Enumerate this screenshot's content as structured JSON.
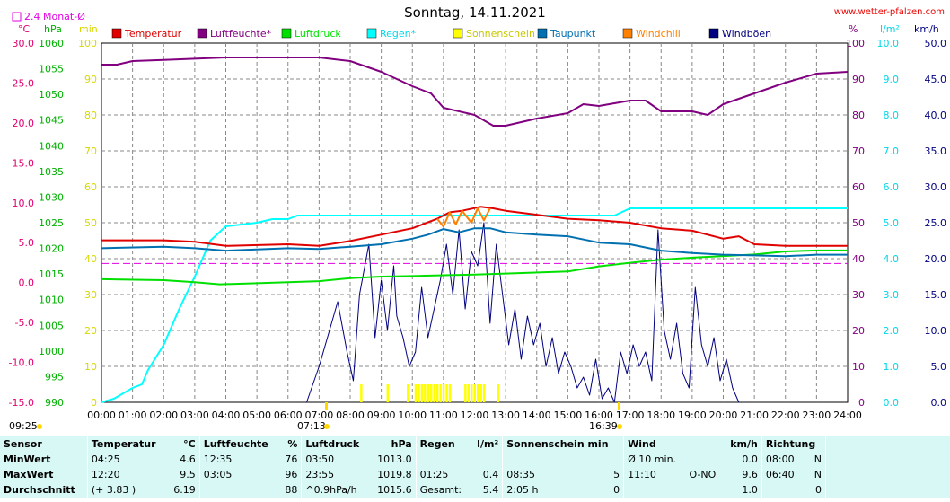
{
  "page": {
    "title": "Sonntag, 14.11.2021",
    "site": "www.wetter-pfalzen.com"
  },
  "chart_data": {
    "type": "line",
    "x_range": [
      "00:00",
      "24:00"
    ],
    "x_ticks": [
      "00:00",
      "01:00",
      "02:00",
      "03:00",
      "04:00",
      "05:00",
      "06:00",
      "07:00",
      "08:00",
      "09:00",
      "10:00",
      "11:00",
      "12:00",
      "13:00",
      "14:00",
      "15:00",
      "16:00",
      "17:00",
      "18:00",
      "19:00",
      "20:00",
      "21:00",
      "22:00",
      "23:00",
      "24:00"
    ],
    "axes": {
      "temp": {
        "unit": "°C",
        "label": "2.4 Monat-Ø",
        "min": -15,
        "max": 30,
        "ticks": [
          "30.0",
          "25.0",
          "20.0",
          "15.0",
          "10.0",
          "5.0",
          "0.0",
          "-5.0",
          "-10.0",
          "-15.0"
        ]
      },
      "pressure": {
        "unit": "hPa",
        "min": 990,
        "max": 1060,
        "ticks": [
          "1060",
          "1055",
          "1050",
          "1045",
          "1040",
          "1035",
          "1030",
          "1025",
          "1020",
          "1015",
          "1010",
          "1005",
          "1000",
          "995",
          "990"
        ]
      },
      "sunshine": {
        "unit": "min",
        "min": 0,
        "max": 100,
        "ticks": [
          "100",
          "90",
          "80",
          "70",
          "60",
          "50",
          "40",
          "30",
          "20",
          "10",
          "0"
        ]
      },
      "humidity": {
        "unit": "%",
        "min": 0,
        "max": 100,
        "ticks": [
          "100",
          "90",
          "80",
          "70",
          "60",
          "50",
          "40",
          "30",
          "20",
          "10",
          "0"
        ]
      },
      "rain": {
        "unit": "l/m²",
        "min": 0,
        "max": 10,
        "ticks": [
          "10.0",
          "9.0",
          "8.0",
          "7.0",
          "6.0",
          "5.0",
          "4.0",
          "3.0",
          "2.0",
          "1.0",
          "0.0"
        ]
      },
      "wind": {
        "unit": "km/h",
        "min": 0,
        "max": 50,
        "ticks": [
          "50.0",
          "45.0",
          "40.0",
          "35.0",
          "30.0",
          "25.0",
          "20.0",
          "15.0",
          "10.0",
          "5.0",
          "0.0"
        ]
      }
    },
    "legend": [
      {
        "name": "Temperatur",
        "color": "#e00000"
      },
      {
        "name": "Luftfeuchte*",
        "color": "#800080"
      },
      {
        "name": "Luftdruck",
        "color": "#00e000"
      },
      {
        "name": "Regen*",
        "color": "#00ffff"
      },
      {
        "name": "Sonnenschein",
        "color": "#ffff00"
      },
      {
        "name": "Taupunkt",
        "color": "#0070b0"
      },
      {
        "name": "Windchill",
        "color": "#ff8000"
      },
      {
        "name": "Windböen",
        "color": "#000080"
      }
    ],
    "monthly_avg_temp": 2.4,
    "series": [
      {
        "name": "Temperatur",
        "axis": "temp",
        "color": "#e00000",
        "points": [
          [
            0,
            5.3
          ],
          [
            2,
            5.3
          ],
          [
            3,
            5.1
          ],
          [
            4,
            4.6
          ],
          [
            6,
            4.8
          ],
          [
            7,
            4.6
          ],
          [
            8,
            5.2
          ],
          [
            9,
            6.0
          ],
          [
            10,
            6.8
          ],
          [
            10.8,
            8.0
          ],
          [
            11.2,
            8.8
          ],
          [
            11.6,
            9.0
          ],
          [
            12.2,
            9.5
          ],
          [
            12.6,
            9.3
          ],
          [
            13,
            9.0
          ],
          [
            14,
            8.5
          ],
          [
            15,
            8.0
          ],
          [
            16,
            7.8
          ],
          [
            17,
            7.5
          ],
          [
            18,
            6.8
          ],
          [
            19,
            6.5
          ],
          [
            20,
            5.5
          ],
          [
            20.5,
            5.8
          ],
          [
            21,
            4.8
          ],
          [
            22,
            4.6
          ],
          [
            23,
            4.6
          ],
          [
            24,
            4.6
          ]
        ]
      },
      {
        "name": "Taupunkt",
        "axis": "temp",
        "color": "#0070b0",
        "points": [
          [
            0,
            4.3
          ],
          [
            2,
            4.5
          ],
          [
            3,
            4.3
          ],
          [
            4,
            4.0
          ],
          [
            6,
            4.3
          ],
          [
            7,
            4.2
          ],
          [
            8,
            4.5
          ],
          [
            9,
            4.8
          ],
          [
            10,
            5.5
          ],
          [
            10.5,
            6.0
          ],
          [
            11,
            6.7
          ],
          [
            11.5,
            6.3
          ],
          [
            12,
            6.8
          ],
          [
            12.5,
            6.8
          ],
          [
            13,
            6.3
          ],
          [
            14,
            6.0
          ],
          [
            15,
            5.8
          ],
          [
            16,
            5.0
          ],
          [
            17,
            4.8
          ],
          [
            18,
            4.0
          ],
          [
            19,
            3.7
          ],
          [
            20,
            3.5
          ],
          [
            21,
            3.4
          ],
          [
            22,
            3.3
          ],
          [
            23,
            3.5
          ],
          [
            24,
            3.5
          ]
        ]
      },
      {
        "name": "Luftfeuchte*",
        "axis": "humidity",
        "color": "#800080",
        "points": [
          [
            0,
            94
          ],
          [
            0.5,
            94
          ],
          [
            1,
            95
          ],
          [
            2,
            95.3
          ],
          [
            4,
            96
          ],
          [
            6,
            96
          ],
          [
            7,
            96
          ],
          [
            8,
            95
          ],
          [
            9,
            92
          ],
          [
            10,
            88
          ],
          [
            10.6,
            86
          ],
          [
            11,
            82
          ],
          [
            12,
            80
          ],
          [
            12.6,
            77
          ],
          [
            13,
            77
          ],
          [
            14,
            79
          ],
          [
            15,
            80.5
          ],
          [
            15.5,
            83
          ],
          [
            16,
            82.5
          ],
          [
            17,
            84
          ],
          [
            17.5,
            84
          ],
          [
            18,
            81
          ],
          [
            19,
            81
          ],
          [
            19.5,
            80
          ],
          [
            20,
            83
          ],
          [
            21,
            86
          ],
          [
            22,
            89
          ],
          [
            23,
            91.5
          ],
          [
            24,
            92
          ]
        ]
      },
      {
        "name": "Luftdruck",
        "axis": "pressure",
        "color": "#00e000",
        "points": [
          [
            0,
            1014.0
          ],
          [
            2,
            1013.8
          ],
          [
            3,
            1013.4
          ],
          [
            3.8,
            1013.0
          ],
          [
            5,
            1013.2
          ],
          [
            7,
            1013.6
          ],
          [
            8,
            1014.2
          ],
          [
            9,
            1014.5
          ],
          [
            10,
            1014.6
          ],
          [
            12,
            1014.9
          ],
          [
            13,
            1015.1
          ],
          [
            15,
            1015.5
          ],
          [
            16,
            1016.5
          ],
          [
            17,
            1017.2
          ],
          [
            18,
            1017.8
          ],
          [
            19,
            1018.2
          ],
          [
            20,
            1018.5
          ],
          [
            21,
            1018.8
          ],
          [
            22,
            1019.4
          ],
          [
            23,
            1019.6
          ],
          [
            24,
            1019.6
          ]
        ]
      },
      {
        "name": "Regen*",
        "axis": "rain",
        "color": "#00ffff",
        "points": [
          [
            0,
            0
          ],
          [
            0.4,
            0.1
          ],
          [
            1,
            0.4
          ],
          [
            1.3,
            0.5
          ],
          [
            1.5,
            0.9
          ],
          [
            2,
            1.6
          ],
          [
            2.5,
            2.6
          ],
          [
            3,
            3.5
          ],
          [
            3.5,
            4.5
          ],
          [
            4,
            4.9
          ],
          [
            5,
            5.0
          ],
          [
            5.5,
            5.1
          ],
          [
            6,
            5.1
          ],
          [
            6.3,
            5.2
          ],
          [
            7,
            5.2
          ],
          [
            16,
            5.2
          ],
          [
            16.5,
            5.2
          ],
          [
            17,
            5.4
          ],
          [
            24,
            5.4
          ]
        ]
      },
      {
        "name": "Windchill",
        "axis": "temp",
        "color": "#ff8000",
        "points": [
          [
            10.8,
            8.0
          ],
          [
            11,
            7.0
          ],
          [
            11.2,
            8.8
          ],
          [
            11.4,
            7.3
          ],
          [
            11.6,
            9.0
          ],
          [
            11.9,
            7.5
          ],
          [
            12.1,
            9.3
          ],
          [
            12.3,
            7.8
          ],
          [
            12.5,
            9.3
          ]
        ]
      },
      {
        "name": "Windböen",
        "axis": "wind",
        "color": "#000080",
        "points": [
          [
            6.6,
            0
          ],
          [
            7.0,
            5.0
          ],
          [
            7.3,
            9.5
          ],
          [
            7.6,
            14.0
          ],
          [
            7.9,
            7.0
          ],
          [
            8.1,
            3.0
          ],
          [
            8.3,
            15.0
          ],
          [
            8.6,
            22.0
          ],
          [
            8.8,
            9.0
          ],
          [
            9.0,
            17.0
          ],
          [
            9.2,
            10.0
          ],
          [
            9.4,
            19.0
          ],
          [
            9.5,
            12.0
          ],
          [
            9.7,
            9.0
          ],
          [
            9.9,
            5.0
          ],
          [
            10.1,
            7.0
          ],
          [
            10.3,
            16.0
          ],
          [
            10.5,
            9.0
          ],
          [
            10.7,
            13.0
          ],
          [
            10.9,
            17.0
          ],
          [
            11.1,
            22.0
          ],
          [
            11.3,
            15.0
          ],
          [
            11.5,
            24.0
          ],
          [
            11.7,
            13.0
          ],
          [
            11.9,
            21.0
          ],
          [
            12.1,
            19.0
          ],
          [
            12.3,
            25.0
          ],
          [
            12.5,
            11.0
          ],
          [
            12.7,
            22.0
          ],
          [
            12.9,
            15.0
          ],
          [
            13.1,
            8.0
          ],
          [
            13.3,
            13.0
          ],
          [
            13.5,
            6.0
          ],
          [
            13.7,
            12.0
          ],
          [
            13.9,
            8.0
          ],
          [
            14.1,
            11.0
          ],
          [
            14.3,
            5.0
          ],
          [
            14.5,
            9.0
          ],
          [
            14.7,
            4.0
          ],
          [
            14.9,
            7.0
          ],
          [
            15.1,
            5.0
          ],
          [
            15.3,
            2.0
          ],
          [
            15.5,
            3.5
          ],
          [
            15.7,
            1.0
          ],
          [
            15.9,
            6.0
          ],
          [
            16.1,
            0.5
          ],
          [
            16.3,
            2.0
          ],
          [
            16.5,
            0
          ],
          [
            16.7,
            7.0
          ],
          [
            16.9,
            4.0
          ],
          [
            17.1,
            8.0
          ],
          [
            17.3,
            5.0
          ],
          [
            17.5,
            7.0
          ],
          [
            17.7,
            3.0
          ],
          [
            17.9,
            24.0
          ],
          [
            18.1,
            10.0
          ],
          [
            18.3,
            6.0
          ],
          [
            18.5,
            11.0
          ],
          [
            18.7,
            4.0
          ],
          [
            18.9,
            2.0
          ],
          [
            19.1,
            16.0
          ],
          [
            19.3,
            8.0
          ],
          [
            19.5,
            5.0
          ],
          [
            19.7,
            9.0
          ],
          [
            19.9,
            3.0
          ],
          [
            20.1,
            6.0
          ],
          [
            20.3,
            2.0
          ],
          [
            20.5,
            0
          ]
        ]
      }
    ],
    "sunshine_minutes": [
      [
        8.35,
        5
      ],
      [
        9.2,
        5
      ],
      [
        9.85,
        5
      ],
      [
        10.1,
        5
      ],
      [
        10.2,
        5
      ],
      [
        10.3,
        5
      ],
      [
        10.4,
        5
      ],
      [
        10.5,
        5
      ],
      [
        10.6,
        5
      ],
      [
        10.7,
        5
      ],
      [
        10.8,
        5
      ],
      [
        10.9,
        5
      ],
      [
        11.0,
        5
      ],
      [
        11.1,
        5
      ],
      [
        11.2,
        5
      ],
      [
        11.7,
        5
      ],
      [
        11.8,
        5
      ],
      [
        11.9,
        5
      ],
      [
        12.0,
        5
      ],
      [
        12.1,
        5
      ],
      [
        12.2,
        5
      ],
      [
        12.3,
        5
      ],
      [
        12.75,
        5
      ]
    ],
    "annotations": [
      "09:25",
      "07:13",
      "16:39"
    ],
    "avg_line_label": "2.4 Monat-Ø"
  },
  "stats": {
    "headers": [
      "Sensor",
      "Temperatur",
      "°C",
      "Luftfeuchte",
      "%",
      "Luftdruck",
      "hPa",
      "Regen",
      "l/m²",
      "Sonnenschein min",
      "Wind",
      "km/h",
      "Richtung"
    ],
    "rows": [
      {
        "label": "MinWert",
        "t_time": "04:25",
        "t_val": "4.6",
        "h_time": "12:35",
        "h_val": "76",
        "p_time": "03:50",
        "p_val": "1013.0",
        "r_time": "",
        "r_val": "",
        "s_time": "",
        "s_val": "",
        "w_time": "Ø 10 min.",
        "w_dir": "",
        "w_val": "0.0",
        "d_time": "08:00",
        "d_val": "N"
      },
      {
        "label": "MaxWert",
        "t_time": "12:20",
        "t_val": "9.5",
        "h_time": "03:05",
        "h_val": "96",
        "p_time": "23:55",
        "p_val": "1019.8",
        "r_time": "01:25",
        "r_val": "0.4",
        "s_time": "08:35",
        "s_val": "5",
        "w_time": "11:10",
        "w_dir": "O-NO",
        "w_val": "9.6",
        "d_time": "06:40",
        "d_val": "N"
      },
      {
        "label": "Durchschnitt",
        "t_time": "(+ 3.83 )",
        "t_val": "6.19",
        "h_time": "",
        "h_val": "88",
        "p_time": "^0.9hPa/h",
        "p_val": "1015.6",
        "r_time": "Gesamt:",
        "r_val": "5.4",
        "s_time": "2:05 h",
        "s_val": "0",
        "w_time": "",
        "w_dir": "",
        "w_val": "1.0",
        "d_time": "",
        "d_val": "0"
      }
    ]
  }
}
